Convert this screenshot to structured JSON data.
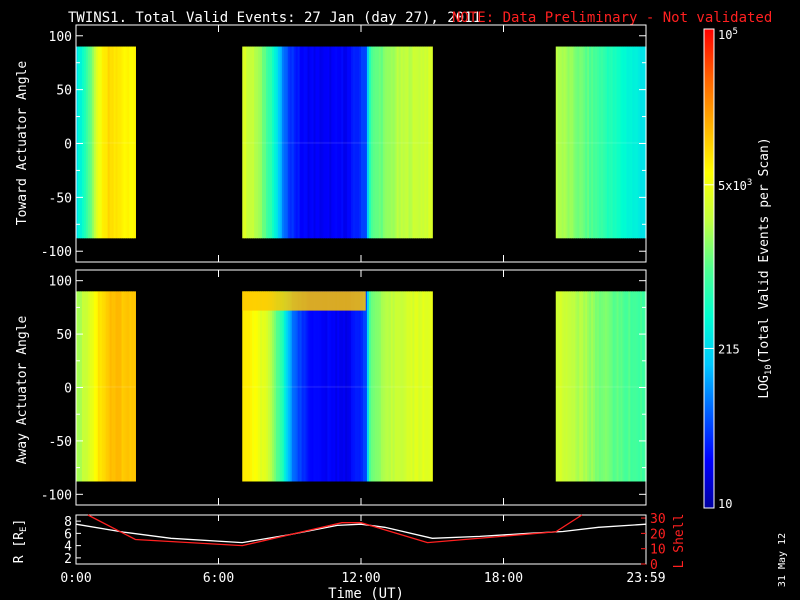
{
  "header": {
    "title": "TWINS1. Total Valid Events: 27 Jan (day  27), 2011",
    "note": "NOTE: Data Preliminary - Not validated"
  },
  "colorbar": {
    "label_prefix": "LOG",
    "label_sub": "10",
    "label_suffix": "(Total Valid Events per Scan)",
    "ticks": [
      {
        "label": "10",
        "value": 10
      },
      {
        "label": "215",
        "value": 215
      },
      {
        "label": "5x10",
        "sup": "3",
        "value": 5000
      },
      {
        "label": "10",
        "sup": "5",
        "value": 100000
      }
    ],
    "range": [
      10,
      100000
    ],
    "scale": "log",
    "colors": [
      "#0000a0",
      "#0000ff",
      "#0060ff",
      "#00c8ff",
      "#00ffd0",
      "#50ff90",
      "#c0ff40",
      "#ffff00",
      "#ffb000",
      "#ff6000",
      "#ff0000"
    ]
  },
  "panels": [
    {
      "ylabel": "Toward Actuator Angle",
      "yticks": [
        "100",
        "50",
        "0",
        "-50",
        "-100"
      ]
    },
    {
      "ylabel": "Away Actuator Angle",
      "yticks": [
        "100",
        "50",
        "0",
        "-50",
        "-100"
      ]
    }
  ],
  "orbit": {
    "ylabel_left": "R [R",
    "ylabel_left_sub": "E",
    "ylabel_left_end": "]",
    "ylabel_right": "L Shell",
    "left_ticks": [
      "8",
      "6",
      "4",
      "2"
    ],
    "right_ticks": [
      "30",
      "20",
      "10",
      "0"
    ],
    "colors": {
      "r": "#ffffff",
      "lshell": "#ff2020"
    }
  },
  "xaxis": {
    "label": "Time (UT)",
    "ticks": [
      "0:00",
      "6:00",
      "12:00",
      "18:00",
      "23:59"
    ]
  },
  "footer": {
    "date_stamp": "31 May 12"
  },
  "chart_data": [
    {
      "type": "heatmap",
      "title": "Toward Actuator Angle",
      "xlabel": "",
      "ylabel": "Toward Actuator Angle",
      "xlim": [
        0,
        24
      ],
      "ylim": [
        -110,
        110
      ],
      "data_y_range": [
        -88,
        90
      ],
      "value_scale": "log",
      "blocks": [
        {
          "start_h": 0.0,
          "end_h": 2.5,
          "profile": [
            [
              0,
              250
            ],
            [
              0.3,
              450
            ],
            [
              0.6,
              1200
            ],
            [
              1.0,
              5500
            ],
            [
              1.4,
              9500
            ],
            [
              1.9,
              7500
            ],
            [
              2.5,
              7000
            ]
          ]
        },
        {
          "start_h": 7.0,
          "end_h": 15.0,
          "profile": [
            [
              7.0,
              4000
            ],
            [
              7.6,
              2200
            ],
            [
              8.2,
              700
            ],
            [
              8.8,
              60
            ],
            [
              9.5,
              25
            ],
            [
              10.5,
              22
            ],
            [
              11.5,
              25
            ],
            [
              12.2,
              50
            ],
            [
              12.4,
              900
            ],
            [
              13.5,
              2200
            ],
            [
              15.0,
              3500
            ]
          ]
        },
        {
          "start_h": 20.2,
          "end_h": 24.0,
          "profile": [
            [
              20.2,
              2500
            ],
            [
              21.0,
              1500
            ],
            [
              22.0,
              800
            ],
            [
              23.0,
              400
            ],
            [
              24.0,
              250
            ]
          ]
        }
      ]
    },
    {
      "type": "heatmap",
      "title": "Away Actuator Angle",
      "xlabel": "",
      "ylabel": "Away Actuator Angle",
      "xlim": [
        0,
        24
      ],
      "ylim": [
        -110,
        110
      ],
      "data_y_range": [
        -88,
        90
      ],
      "value_scale": "log",
      "blocks": [
        {
          "start_h": 0.0,
          "end_h": 2.5,
          "profile": [
            [
              0,
              1800
            ],
            [
              0.5,
              3500
            ],
            [
              1.0,
              9000
            ],
            [
              1.5,
              14000
            ],
            [
              2.0,
              13000
            ],
            [
              2.5,
              12000
            ]
          ]
        },
        {
          "start_h": 7.0,
          "end_h": 15.0,
          "profile": [
            [
              7.0,
              8000
            ],
            [
              7.5,
              6000
            ],
            [
              8.0,
              3500
            ],
            [
              8.6,
              800
            ],
            [
              9.2,
              60
            ],
            [
              10.0,
              25
            ],
            [
              11.5,
              22
            ],
            [
              12.2,
              50
            ],
            [
              12.4,
              1200
            ],
            [
              13.5,
              3000
            ],
            [
              15.0,
              4500
            ]
          ]
        },
        {
          "start_h": 20.2,
          "end_h": 24.0,
          "profile": [
            [
              20.2,
              3500
            ],
            [
              21.0,
              2500
            ],
            [
              22.0,
              1500
            ],
            [
              23.0,
              1000
            ],
            [
              24.0,
              800
            ]
          ]
        }
      ],
      "upper_band": {
        "start_h": 7.0,
        "end_h": 12.2,
        "angle_min": 72,
        "angle_max": 90,
        "value": 12000
      }
    },
    {
      "type": "line",
      "title": "",
      "xlabel": "Time (UT)",
      "xlim": [
        0,
        24
      ],
      "series": [
        {
          "name": "R [RE]",
          "axis": "left",
          "ylim": [
            1,
            9
          ],
          "x": [
            0,
            2,
            4,
            7,
            9,
            11,
            12,
            13,
            15,
            17,
            19,
            20.5,
            22,
            24
          ],
          "y": [
            7.5,
            6.2,
            5.2,
            4.5,
            5.8,
            7.3,
            7.5,
            7.0,
            5.2,
            5.5,
            6.0,
            6.3,
            7.0,
            7.5
          ]
        },
        {
          "name": "L Shell",
          "axis": "right",
          "ylim": [
            0,
            32
          ],
          "x": [
            0.5,
            2.5,
            7,
            11.2,
            12,
            14.8,
            20.2,
            21.3
          ],
          "y": [
            32,
            16,
            12,
            27,
            27,
            14,
            21,
            32
          ]
        }
      ]
    }
  ]
}
